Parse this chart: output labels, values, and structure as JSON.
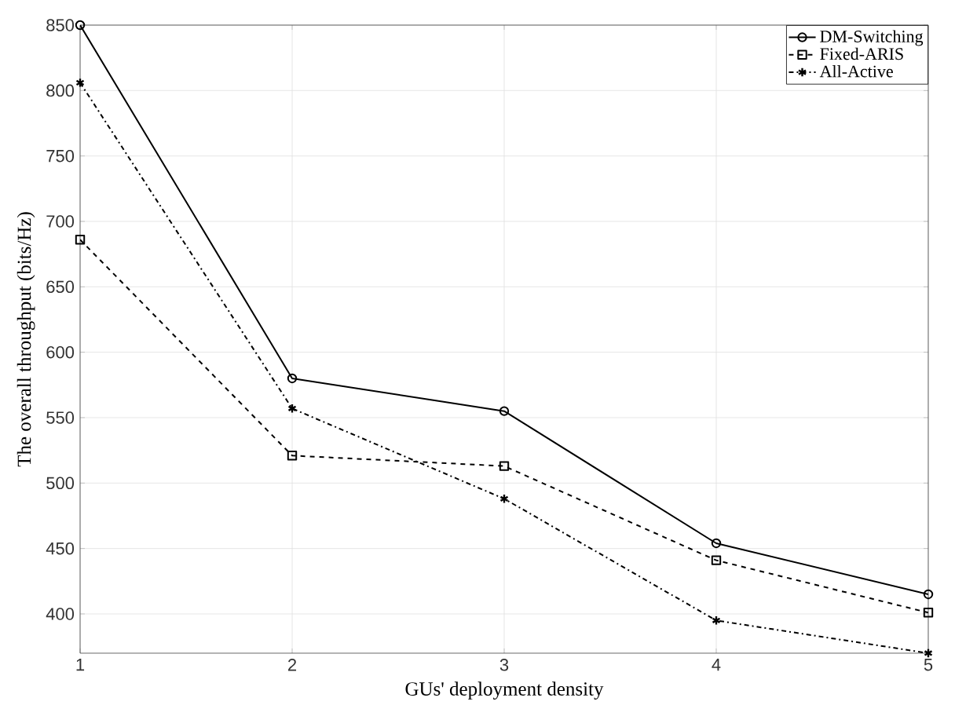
{
  "chart_data": {
    "type": "line",
    "xlabel": "GUs' deployment density",
    "ylabel": "The overall throughput (bits/Hz)",
    "x": [
      1,
      2,
      3,
      4,
      5
    ],
    "series": [
      {
        "name": "DM-Switching",
        "color": "#000000",
        "marker": "circle",
        "line_style": "solid",
        "values": [
          850,
          580,
          555,
          454,
          415
        ]
      },
      {
        "name": "Fixed-ARIS",
        "color": "#000000",
        "marker": "square",
        "line_style": "dashed",
        "values": [
          686,
          521,
          513,
          441,
          401
        ]
      },
      {
        "name": "All-Active",
        "color": "#000000",
        "marker": "cross",
        "line_style": "dashdot",
        "values": [
          806,
          557,
          488,
          395,
          370
        ]
      }
    ],
    "xlim": [
      1,
      5
    ],
    "xticks": [
      1,
      2,
      3,
      4,
      5
    ],
    "ylim": [
      370,
      850
    ],
    "yticks": [
      400,
      450,
      500,
      550,
      600,
      650,
      700,
      750,
      800,
      850
    ],
    "grid": true,
    "legend": "top right"
  }
}
